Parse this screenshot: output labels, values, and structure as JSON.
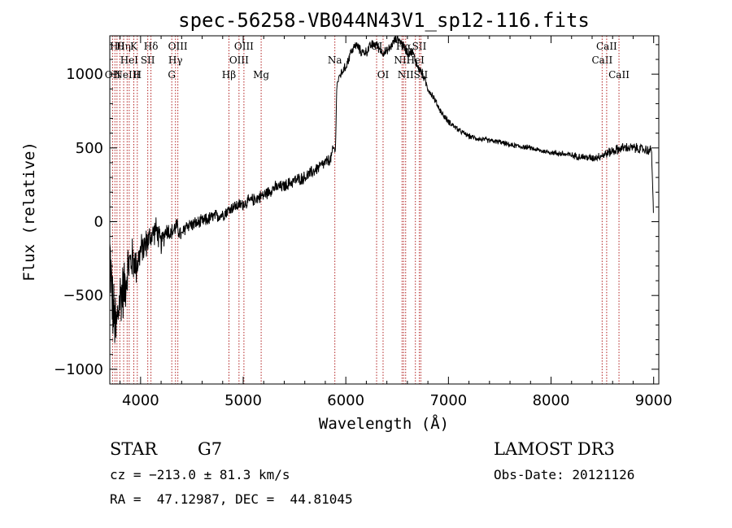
{
  "chart_data": {
    "type": "line",
    "title": "spec-56258-VB044N43V1_sp12-116.fits",
    "xlabel": "Wavelength (Å)",
    "ylabel": "Flux (relative)",
    "xlim": [
      3700,
      9050
    ],
    "ylim": [
      -1100,
      1260
    ],
    "x_ticks": [
      4000,
      5000,
      6000,
      7000,
      8000,
      9000
    ],
    "x_tick_labels": [
      "4000",
      "5000",
      "6000",
      "7000",
      "8000",
      "9000"
    ],
    "y_ticks": [
      -1000,
      -500,
      0,
      500,
      1000
    ],
    "y_tick_labels": [
      "−1000",
      "−500",
      "0",
      "500",
      "1000"
    ],
    "grid": false,
    "series": [
      {
        "name": "flux",
        "x": [
          3700,
          3730,
          3760,
          3800,
          3840,
          3880,
          3920,
          3960,
          4000,
          4050,
          4100,
          4150,
          4200,
          4250,
          4300,
          4350,
          4400,
          4450,
          4500,
          4600,
          4700,
          4800,
          4900,
          5000,
          5100,
          5200,
          5300,
          5400,
          5500,
          5600,
          5700,
          5800,
          5850,
          5880,
          5900,
          5910,
          5920,
          5950,
          6000,
          6050,
          6100,
          6150,
          6200,
          6250,
          6300,
          6350,
          6400,
          6450,
          6500,
          6550,
          6600,
          6650,
          6700,
          6750,
          6800,
          6850,
          6900,
          6950,
          7000,
          7100,
          7200,
          7300,
          7400,
          7500,
          7600,
          7700,
          7800,
          7900,
          8000,
          8100,
          8200,
          8300,
          8400,
          8500,
          8600,
          8700,
          8800,
          8900,
          8980,
          9000
        ],
        "values": [
          -200,
          -600,
          -750,
          -500,
          -450,
          -300,
          -250,
          -300,
          -200,
          -150,
          -100,
          -50,
          -150,
          -50,
          -80,
          -30,
          -100,
          -20,
          -20,
          0,
          30,
          50,
          100,
          120,
          150,
          180,
          230,
          240,
          280,
          300,
          350,
          400,
          420,
          500,
          480,
          900,
          950,
          1000,
          1050,
          1150,
          1200,
          1150,
          1150,
          1200,
          1200,
          1150,
          1150,
          1200,
          1250,
          1200,
          1150,
          1150,
          1050,
          1000,
          900,
          850,
          780,
          720,
          680,
          620,
          580,
          560,
          550,
          540,
          520,
          510,
          500,
          480,
          470,
          460,
          450,
          440,
          430,
          450,
          480,
          500,
          500,
          490,
          480,
          10
        ],
        "noise_scale": [
          260,
          280,
          300,
          260,
          230,
          200,
          170,
          150,
          130,
          120,
          110,
          100,
          90,
          80,
          75,
          70,
          65,
          60,
          55,
          55,
          55,
          55,
          50,
          50,
          50,
          50,
          50,
          50,
          50,
          50,
          50,
          50,
          50,
          40,
          30,
          30,
          30,
          35,
          40,
          40,
          40,
          40,
          40,
          40,
          40,
          40,
          40,
          40,
          40,
          40,
          40,
          40,
          35,
          35,
          30,
          30,
          25,
          25,
          25,
          22,
          20,
          20,
          20,
          20,
          20,
          20,
          20,
          20,
          20,
          25,
          25,
          30,
          30,
          35,
          40,
          40,
          40,
          40,
          40,
          0
        ]
      }
    ],
    "lines": [
      {
        "wavelength": 3727,
        "labels": [
          "OII"
        ],
        "row": [
          2
        ]
      },
      {
        "wavelength": 3750,
        "labels": [],
        "row": []
      },
      {
        "wavelength": 3770,
        "labels": [
          "Hθ"
        ],
        "row": [
          0
        ]
      },
      {
        "wavelength": 3798,
        "labels": [],
        "row": []
      },
      {
        "wavelength": 3835,
        "labels": [
          "Hη"
        ],
        "row": [
          0
        ]
      },
      {
        "wavelength": 3869,
        "labels": [
          "NeIII"
        ],
        "row": [
          2
        ]
      },
      {
        "wavelength": 3889,
        "labels": [
          "HeI"
        ],
        "row": [
          1
        ]
      },
      {
        "wavelength": 3934,
        "labels": [
          "K"
        ],
        "row": [
          0
        ]
      },
      {
        "wavelength": 3968,
        "labels": [
          "H"
        ],
        "row": [
          2
        ]
      },
      {
        "wavelength": 4070,
        "labels": [
          "SII"
        ],
        "row": [
          1
        ]
      },
      {
        "wavelength": 4101,
        "labels": [
          "Hδ"
        ],
        "row": [
          0
        ]
      },
      {
        "wavelength": 4304,
        "labels": [
          "G"
        ],
        "row": [
          2
        ]
      },
      {
        "wavelength": 4340,
        "labels": [
          "Hγ"
        ],
        "row": [
          1
        ]
      },
      {
        "wavelength": 4363,
        "labels": [
          "OIII"
        ],
        "row": [
          0
        ]
      },
      {
        "wavelength": 4861,
        "labels": [
          "Hβ"
        ],
        "row": [
          2
        ]
      },
      {
        "wavelength": 4959,
        "labels": [
          "OIII"
        ],
        "row": [
          1
        ]
      },
      {
        "wavelength": 5007,
        "labels": [
          "OIII"
        ],
        "row": [
          0
        ]
      },
      {
        "wavelength": 5175,
        "labels": [
          "Mg"
        ],
        "row": [
          2
        ]
      },
      {
        "wavelength": 5893,
        "labels": [
          "Na"
        ],
        "row": [
          1
        ]
      },
      {
        "wavelength": 6300,
        "labels": [
          "OI"
        ],
        "row": [
          0
        ]
      },
      {
        "wavelength": 6363,
        "labels": [
          "OI"
        ],
        "row": [
          2
        ]
      },
      {
        "wavelength": 6548,
        "labels": [
          "NII"
        ],
        "row": [
          1
        ]
      },
      {
        "wavelength": 6563,
        "labels": [
          "Hα"
        ],
        "row": [
          0
        ]
      },
      {
        "wavelength": 6583,
        "labels": [
          "NII"
        ],
        "row": [
          2
        ]
      },
      {
        "wavelength": 6678,
        "labels": [
          "HeI"
        ],
        "row": [
          1
        ]
      },
      {
        "wavelength": 6716,
        "labels": [
          "SII"
        ],
        "row": [
          0
        ]
      },
      {
        "wavelength": 6731,
        "labels": [
          "SII"
        ],
        "row": [
          2
        ]
      },
      {
        "wavelength": 8498,
        "labels": [
          "CaII"
        ],
        "row": [
          1
        ]
      },
      {
        "wavelength": 8542,
        "labels": [
          "CaII"
        ],
        "row": [
          0
        ]
      },
      {
        "wavelength": 8662,
        "labels": [
          "CaII"
        ],
        "row": [
          2
        ]
      }
    ],
    "line_color": "#b22222",
    "spectrum_color": "#000000"
  },
  "info": {
    "object_class": "STAR",
    "subclass": "G7",
    "survey": "LAMOST DR3",
    "velocity": "cz = −213.0 ± 81.3 km/s",
    "obs_date": "Obs-Date: 20121126",
    "coords": "RA =  47.12987, DEC =  44.81045"
  }
}
